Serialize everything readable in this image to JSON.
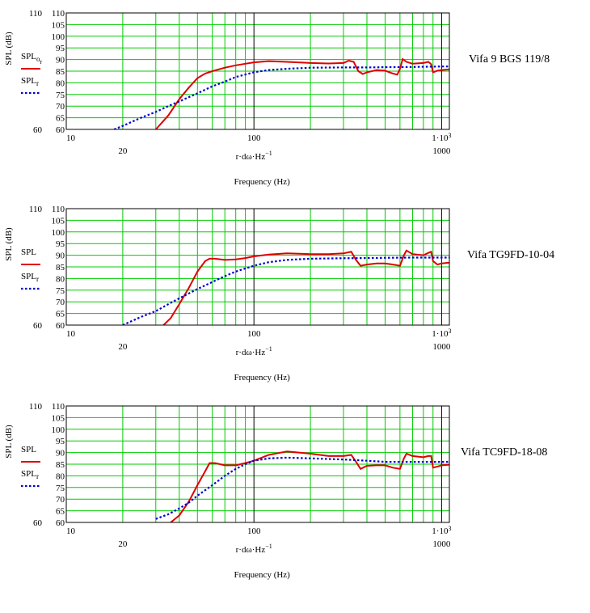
{
  "chart_data": [
    {
      "type": "line",
      "title": "Vifa 9 BGS 119/8",
      "ylabel": "SPL (dB)",
      "xlabel": "Frequency (Hz)",
      "xlabel_expr": "r·dω·Hz",
      "xlabel_exp": "−1",
      "x_scale": "log",
      "xlim": [
        10,
        1100
      ],
      "ylim": [
        60,
        110
      ],
      "grid": true,
      "xticks_top": [
        "10",
        "100",
        "1·10"
      ],
      "xticks_top_exp": "3",
      "xticks_bottom": [
        {
          "x": 20,
          "label": "20"
        },
        {
          "x": 1000,
          "label": "1000"
        }
      ],
      "yticks_right": [
        "60",
        "65",
        "70",
        "75",
        "80",
        "85",
        "90",
        "95",
        "100",
        "105",
        "110"
      ],
      "yticks_left": [
        "60",
        "110"
      ],
      "legend": [
        {
          "label": "SPL",
          "sub": "o",
          "sub2": "r",
          "style": "solid"
        },
        {
          "label": "SPL",
          "sub": "r",
          "style": "dotted"
        }
      ],
      "series": [
        {
          "color": "#e00000",
          "style": "solid",
          "x": [
            30,
            35,
            40,
            45,
            50,
            55,
            60,
            70,
            80,
            90,
            100,
            120,
            150,
            200,
            250,
            300,
            320,
            340,
            360,
            380,
            400,
            450,
            500,
            550,
            580,
            600,
            620,
            650,
            700,
            800,
            850,
            880,
            900,
            950,
            1000,
            1100
          ],
          "y": [
            60,
            66,
            73,
            78,
            82,
            84,
            85,
            86.5,
            87.5,
            88.2,
            88.8,
            89.3,
            89,
            88.5,
            88.3,
            88.5,
            89.5,
            89,
            85,
            83.8,
            84.5,
            85.5,
            85.2,
            84,
            83.5,
            86,
            90.2,
            89,
            88.2,
            88.5,
            89,
            88,
            84.5,
            85.2,
            85.5,
            85.8
          ]
        },
        {
          "color": "#0000d0",
          "style": "dotted",
          "x": [
            18,
            20,
            25,
            30,
            35,
            40,
            50,
            60,
            70,
            80,
            100,
            120,
            150,
            200,
            300,
            400,
            500,
            700,
            1000,
            1100
          ],
          "y": [
            60,
            61.5,
            65,
            67.5,
            70,
            72,
            75.5,
            78.5,
            80.5,
            82.5,
            84.5,
            85.5,
            86,
            86.5,
            86.6,
            86.6,
            86.7,
            86.8,
            87,
            87
          ]
        }
      ]
    },
    {
      "type": "line",
      "title": "Vifa TG9FD-10-04",
      "ylabel": "SPL (dB)",
      "xlabel": "Frequency (Hz)",
      "xlabel_expr": "r·dω·Hz",
      "xlabel_exp": "−1",
      "x_scale": "log",
      "xlim": [
        10,
        1100
      ],
      "ylim": [
        60,
        110
      ],
      "grid": true,
      "xticks_top": [
        "10",
        "100",
        "1·10"
      ],
      "xticks_top_exp": "3",
      "xticks_bottom": [
        {
          "x": 20,
          "label": "20"
        },
        {
          "x": 1000,
          "label": "1000"
        }
      ],
      "yticks_right": [
        "60",
        "65",
        "70",
        "75",
        "80",
        "85",
        "90",
        "95",
        "100",
        "105",
        "110"
      ],
      "yticks_left": [
        "60",
        "110"
      ],
      "legend": [
        {
          "label": "SPL",
          "sub": "",
          "sub2": "",
          "style": "solid"
        },
        {
          "label": "SPL",
          "sub": "r",
          "style": "dotted"
        }
      ],
      "series": [
        {
          "color": "#e00000",
          "style": "solid",
          "x": [
            33,
            36,
            40,
            45,
            50,
            55,
            58,
            62,
            70,
            80,
            90,
            100,
            120,
            150,
            200,
            250,
            300,
            330,
            350,
            370,
            400,
            450,
            500,
            550,
            600,
            630,
            650,
            700,
            800,
            850,
            880,
            900,
            950,
            1000,
            1100
          ],
          "y": [
            60,
            63,
            69,
            76,
            83,
            87.5,
            88.5,
            88.5,
            88,
            88.2,
            88.8,
            89.5,
            90.3,
            90.8,
            90.5,
            90.5,
            90.8,
            91.5,
            88,
            85.5,
            86,
            86.5,
            86.5,
            86,
            85.5,
            90,
            92,
            90.5,
            90,
            91,
            91.5,
            87.5,
            86,
            86.5,
            86.8
          ]
        },
        {
          "color": "#0000d0",
          "style": "dotted",
          "x": [
            20,
            25,
            30,
            35,
            40,
            50,
            60,
            70,
            80,
            100,
            120,
            150,
            200,
            300,
            400,
            500,
            700,
            1000,
            1100
          ],
          "y": [
            60,
            63.5,
            66,
            69,
            71.5,
            75.5,
            78.5,
            81,
            83,
            85.5,
            87,
            88,
            88.5,
            88.7,
            88.8,
            88.9,
            89,
            89,
            89
          ]
        }
      ]
    },
    {
      "type": "line",
      "title": "Vifa TC9FD-18-08",
      "ylabel": "SPL (dB)",
      "xlabel": "Frequency (Hz)",
      "xlabel_expr": "r·dω·Hz",
      "xlabel_exp": "−1",
      "x_scale": "log",
      "xlim": [
        10,
        1100
      ],
      "ylim": [
        60,
        110
      ],
      "grid": true,
      "xticks_top": [
        "10",
        "100",
        "1·10"
      ],
      "xticks_top_exp": "3",
      "xticks_bottom": [
        {
          "x": 20,
          "label": "20"
        },
        {
          "x": 1000,
          "label": "1000"
        }
      ],
      "yticks_right": [
        "60",
        "65",
        "70",
        "75",
        "80",
        "85",
        "90",
        "95",
        "100",
        "105",
        "110"
      ],
      "yticks_left": [
        "60",
        "110"
      ],
      "legend": [
        {
          "label": "SPL",
          "sub": "",
          "sub2": "",
          "style": "solid"
        },
        {
          "label": "SPL",
          "sub": "r",
          "style": "dotted"
        }
      ],
      "series": [
        {
          "color": "#e00000",
          "style": "solid",
          "x": [
            36,
            40,
            45,
            50,
            55,
            58,
            62,
            70,
            80,
            90,
            100,
            120,
            150,
            200,
            250,
            300,
            330,
            350,
            370,
            400,
            450,
            500,
            550,
            600,
            630,
            650,
            700,
            800,
            850,
            880,
            900,
            950,
            1000,
            1100
          ],
          "y": [
            60,
            63,
            69,
            76,
            82,
            85.5,
            85.5,
            84.5,
            84.5,
            85.5,
            86.5,
            89,
            90.5,
            89.5,
            88.5,
            88.5,
            89,
            86,
            83,
            84.3,
            84.5,
            84.5,
            83.5,
            83,
            87.5,
            89.5,
            88.5,
            88,
            88.5,
            88.5,
            83.5,
            84,
            84.5,
            84.8
          ]
        },
        {
          "color": "#0000d0",
          "style": "dotted",
          "x": [
            30,
            35,
            40,
            45,
            50,
            60,
            70,
            80,
            90,
            100,
            120,
            150,
            200,
            300,
            400,
            500,
            700,
            1000,
            1100
          ],
          "y": [
            61.5,
            63.5,
            66,
            68.5,
            71.5,
            76,
            80,
            83,
            85,
            86.5,
            87.5,
            87.8,
            87.5,
            87,
            86.5,
            86,
            86,
            86,
            86
          ]
        }
      ]
    }
  ]
}
